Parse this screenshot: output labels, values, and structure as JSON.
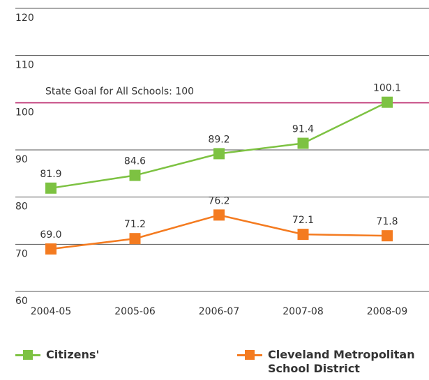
{
  "chart_data": {
    "type": "line",
    "categories": [
      "2004-05",
      "2005-06",
      "2006-07",
      "2007-08",
      "2008-09"
    ],
    "series": [
      {
        "name": "Citizens'",
        "color": "#7dc242",
        "values": [
          81.9,
          84.6,
          89.2,
          91.4,
          100.1
        ],
        "value_labels": [
          "81.9",
          "84.6",
          "89.2",
          "91.4",
          "100.1"
        ]
      },
      {
        "name": "Cleveland Metropolitan School District",
        "color": "#f47b20",
        "values": [
          69.0,
          71.2,
          76.2,
          72.1,
          71.8
        ],
        "value_labels": [
          "69.0",
          "71.2",
          "76.2",
          "72.1",
          "71.8"
        ]
      }
    ],
    "ylim": [
      60,
      120
    ],
    "yticks": [
      60,
      70,
      80,
      90,
      100,
      110,
      120
    ],
    "grid": true,
    "goal": {
      "value": 100,
      "label": "State Goal for All Schools: 100",
      "color": "#c2407c"
    }
  }
}
